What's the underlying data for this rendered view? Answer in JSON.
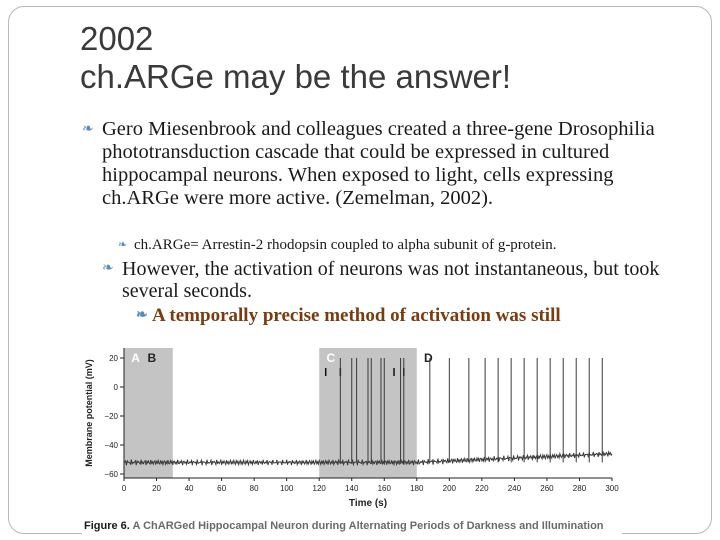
{
  "slide": {
    "title_line1": "2002",
    "title_line2": "ch.ARGe may be the answer!",
    "bullet1": "Gero Miesenbrook and colleagues created a three-gene Drosophilia phototransduction cascade that could be expressed in cultured hippocampal neurons.  When exposed to light, cells expressing  ch.ARGe were more active. (Zemelman, 2002).",
    "subbullet1": "ch.ARGe= Arrestin-2 rhodopsin coupled to alpha subunit of g-protein.",
    "bullet2": "However, the activation of neurons was not instantaneous, but took several seconds.",
    "subbullet2": "A temporally precise method of activation was still",
    "bullet_marker": "❧"
  },
  "figure": {
    "caption_prefix": "Figure 6.",
    "caption_text": "A ChARGed Hippocampal Neuron during Alternating Periods of Darkness and Illumination",
    "panel_labels": [
      "A",
      "B",
      "C",
      "D"
    ],
    "colors": {
      "shaded": "#c4c4c4",
      "trace": "#3a3a3a",
      "white": "#ffffff"
    }
  },
  "chart_data": {
    "type": "line",
    "xlabel": "Time (s)",
    "ylabel": "Membrane potential (mV)",
    "xlim": [
      0,
      300
    ],
    "ylim": [
      -60,
      20
    ],
    "x_ticks": [
      "0",
      "20",
      "40",
      "60",
      "80",
      "100",
      "120",
      "140",
      "160",
      "180",
      "200",
      "220",
      "240",
      "260",
      "280",
      "300"
    ],
    "y_ticks": [
      "20",
      "0",
      "-20",
      "-40",
      "-60"
    ],
    "illuminated_periods": [
      [
        0,
        30
      ],
      [
        120,
        180
      ]
    ],
    "resting_potential": -52,
    "spike_times": [
      133,
      140,
      143,
      150,
      152,
      158,
      160,
      170,
      172,
      188,
      200,
      212,
      222,
      230,
      238,
      246,
      254,
      262,
      270,
      278,
      286,
      294
    ],
    "spike_peak": 20,
    "light_markers": [
      124,
      133,
      166,
      172
    ]
  }
}
